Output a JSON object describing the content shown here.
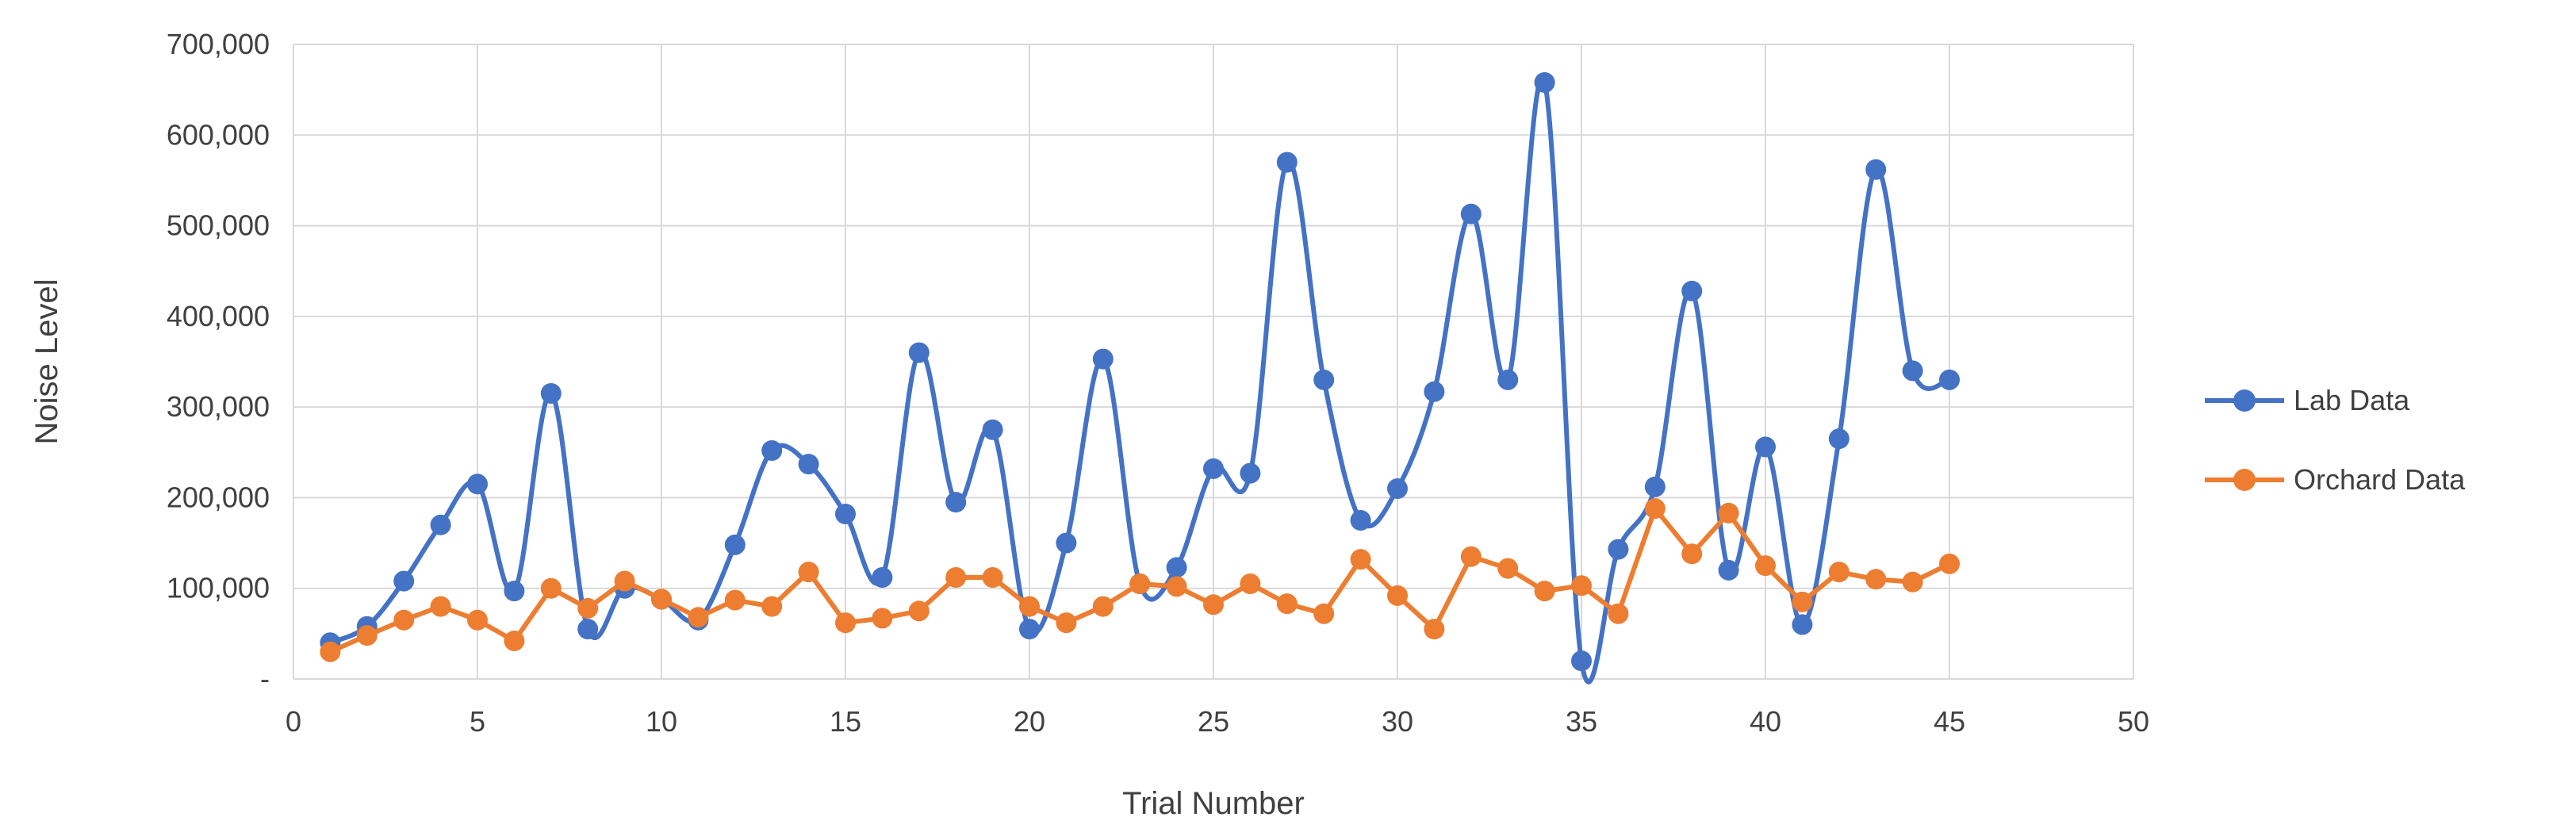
{
  "chart_data": {
    "type": "line",
    "smoothed": true,
    "markers": true,
    "grid": true,
    "legend_position": "right",
    "xlabel": "Trial Number",
    "ylabel": "Noise Level",
    "xlim": [
      0,
      50
    ],
    "ylim": [
      0,
      700000
    ],
    "x_ticks": [
      0,
      5,
      10,
      15,
      20,
      25,
      30,
      35,
      40,
      45,
      50
    ],
    "x_tick_labels": [
      "0",
      "5",
      "10",
      "15",
      "20",
      "25",
      "30",
      "35",
      "40",
      "45",
      "50"
    ],
    "y_ticks": [
      0,
      100000,
      200000,
      300000,
      400000,
      500000,
      600000,
      700000
    ],
    "y_tick_labels": [
      "-",
      "100,000",
      "200,000",
      "300,000",
      "400,000",
      "500,000",
      "600,000",
      "700,000"
    ],
    "x": [
      1,
      2,
      3,
      4,
      5,
      6,
      7,
      8,
      9,
      10,
      11,
      12,
      13,
      14,
      15,
      16,
      17,
      18,
      19,
      20,
      21,
      22,
      23,
      24,
      25,
      26,
      27,
      28,
      29,
      30,
      31,
      32,
      33,
      34,
      35,
      36,
      37,
      38,
      39,
      40,
      41,
      42,
      43,
      44,
      45
    ],
    "series": [
      {
        "name": "Lab Data",
        "color": "#4472C4",
        "values": [
          40000,
          58000,
          108000,
          170000,
          215000,
          97000,
          315000,
          55000,
          100000,
          88000,
          65000,
          148000,
          252000,
          237000,
          182000,
          112000,
          360000,
          195000,
          275000,
          55000,
          150000,
          353000,
          105000,
          123000,
          232000,
          227000,
          570000,
          330000,
          175000,
          210000,
          317000,
          513000,
          330000,
          658000,
          20000,
          143000,
          212000,
          428000,
          120000,
          256000,
          60000,
          265000,
          562000,
          340000,
          330000
        ]
      },
      {
        "name": "Orchard Data",
        "color": "#ED7D31",
        "values": [
          30000,
          48000,
          65000,
          80000,
          65000,
          42000,
          100000,
          78000,
          108000,
          88000,
          68000,
          87000,
          80000,
          118000,
          62000,
          67000,
          75000,
          112000,
          112000,
          80000,
          62000,
          80000,
          105000,
          102000,
          82000,
          105000,
          83000,
          72000,
          132000,
          92000,
          55000,
          135000,
          122000,
          97000,
          103000,
          72000,
          188000,
          138000,
          183000,
          125000,
          85000,
          118000,
          110000,
          107000,
          127000
        ]
      }
    ]
  }
}
